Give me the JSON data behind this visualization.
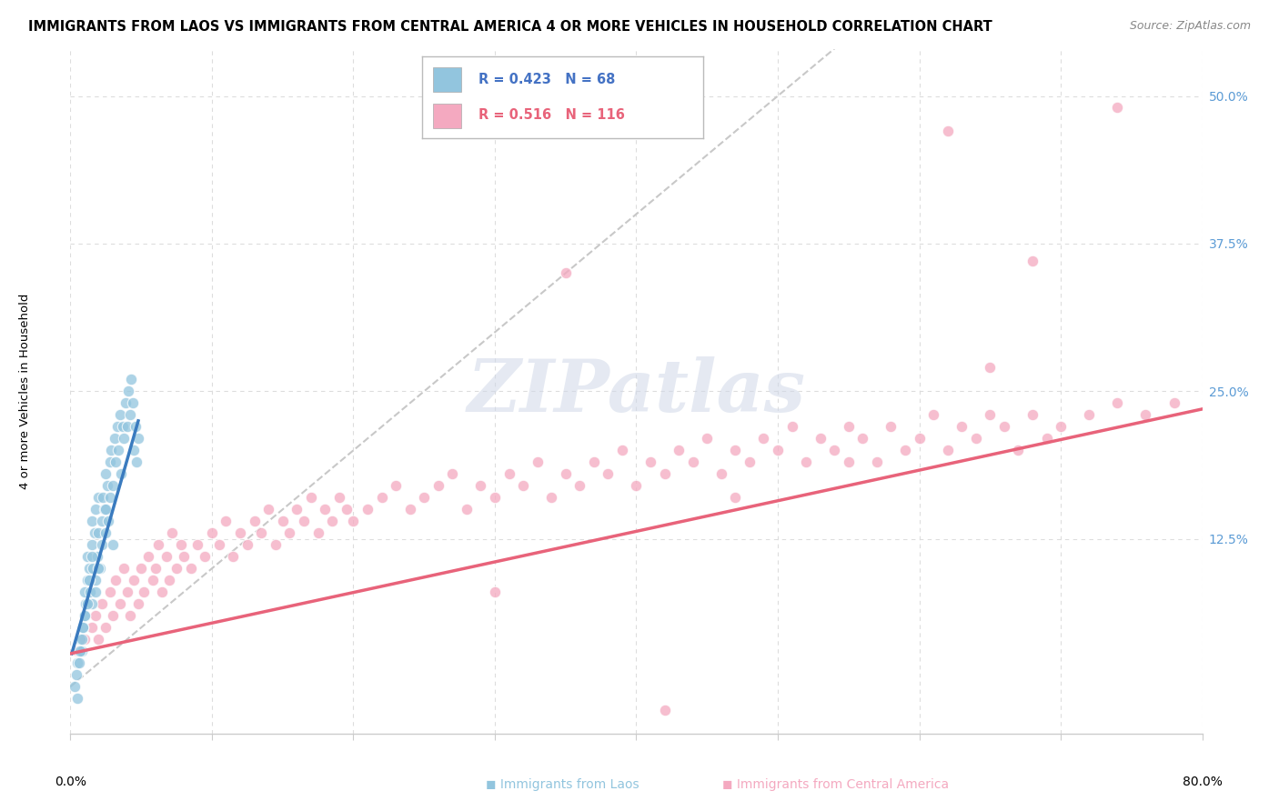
{
  "title": "IMMIGRANTS FROM LAOS VS IMMIGRANTS FROM CENTRAL AMERICA 4 OR MORE VEHICLES IN HOUSEHOLD CORRELATION CHART",
  "source": "Source: ZipAtlas.com",
  "ylabel": "4 or more Vehicles in Household",
  "xlim": [
    0.0,
    0.8
  ],
  "ylim": [
    -0.04,
    0.54
  ],
  "yticks": [
    0.125,
    0.25,
    0.375,
    0.5
  ],
  "ytick_labels": [
    "12.5%",
    "25.0%",
    "37.5%",
    "50.0%"
  ],
  "xtick_vals": [
    0.0,
    0.1,
    0.2,
    0.3,
    0.4,
    0.5,
    0.6,
    0.7,
    0.8
  ],
  "legend_blue_R": "R = 0.423",
  "legend_blue_N": "N = 68",
  "legend_pink_R": "R = 0.516",
  "legend_pink_N": "N = 116",
  "blue_color": "#92c5de",
  "pink_color": "#f4a9c0",
  "blue_line_color": "#3a7bbf",
  "pink_line_color": "#e8637a",
  "diagonal_color": "#c8c8c8",
  "watermark": "ZIPatlas",
  "title_fontsize": 10.5,
  "source_fontsize": 9,
  "label_fontsize": 9.5,
  "tick_fontsize": 10,
  "blue_scatter_x": [
    0.005,
    0.006,
    0.007,
    0.008,
    0.009,
    0.01,
    0.01,
    0.011,
    0.012,
    0.012,
    0.013,
    0.014,
    0.015,
    0.015,
    0.015,
    0.016,
    0.017,
    0.018,
    0.018,
    0.019,
    0.02,
    0.02,
    0.021,
    0.022,
    0.022,
    0.023,
    0.024,
    0.025,
    0.025,
    0.026,
    0.027,
    0.028,
    0.028,
    0.029,
    0.03,
    0.031,
    0.032,
    0.033,
    0.034,
    0.035,
    0.036,
    0.037,
    0.038,
    0.039,
    0.04,
    0.041,
    0.042,
    0.043,
    0.044,
    0.045,
    0.046,
    0.047,
    0.048,
    0.003,
    0.004,
    0.005,
    0.006,
    0.007,
    0.008,
    0.009,
    0.01,
    0.012,
    0.013,
    0.015,
    0.018,
    0.02,
    0.025,
    0.03
  ],
  "blue_scatter_y": [
    0.02,
    0.03,
    0.04,
    0.03,
    0.05,
    0.06,
    0.08,
    0.07,
    0.09,
    0.11,
    0.1,
    0.08,
    0.12,
    0.14,
    0.07,
    0.1,
    0.13,
    0.09,
    0.15,
    0.11,
    0.13,
    0.16,
    0.1,
    0.14,
    0.12,
    0.16,
    0.15,
    0.13,
    0.18,
    0.17,
    0.14,
    0.19,
    0.16,
    0.2,
    0.17,
    0.21,
    0.19,
    0.22,
    0.2,
    0.23,
    0.18,
    0.22,
    0.21,
    0.24,
    0.22,
    0.25,
    0.23,
    0.26,
    0.24,
    0.2,
    0.22,
    0.19,
    0.21,
    0.0,
    0.01,
    -0.01,
    0.02,
    0.03,
    0.04,
    0.05,
    0.06,
    0.07,
    0.09,
    0.11,
    0.08,
    0.1,
    0.15,
    0.12
  ],
  "pink_scatter_x": [
    0.005,
    0.01,
    0.015,
    0.018,
    0.02,
    0.022,
    0.025,
    0.028,
    0.03,
    0.032,
    0.035,
    0.038,
    0.04,
    0.042,
    0.045,
    0.048,
    0.05,
    0.052,
    0.055,
    0.058,
    0.06,
    0.062,
    0.065,
    0.068,
    0.07,
    0.072,
    0.075,
    0.078,
    0.08,
    0.085,
    0.09,
    0.095,
    0.1,
    0.105,
    0.11,
    0.115,
    0.12,
    0.125,
    0.13,
    0.135,
    0.14,
    0.145,
    0.15,
    0.155,
    0.16,
    0.165,
    0.17,
    0.175,
    0.18,
    0.185,
    0.19,
    0.195,
    0.2,
    0.21,
    0.22,
    0.23,
    0.24,
    0.25,
    0.26,
    0.27,
    0.28,
    0.29,
    0.3,
    0.31,
    0.32,
    0.33,
    0.34,
    0.35,
    0.36,
    0.37,
    0.38,
    0.39,
    0.4,
    0.41,
    0.42,
    0.43,
    0.44,
    0.45,
    0.46,
    0.47,
    0.48,
    0.49,
    0.5,
    0.51,
    0.52,
    0.53,
    0.54,
    0.55,
    0.56,
    0.57,
    0.58,
    0.59,
    0.6,
    0.61,
    0.62,
    0.63,
    0.64,
    0.65,
    0.66,
    0.67,
    0.68,
    0.69,
    0.7,
    0.72,
    0.74,
    0.76,
    0.78,
    0.35,
    0.62,
    0.74,
    0.65,
    0.42,
    0.3,
    0.55,
    0.47,
    0.68
  ],
  "pink_scatter_y": [
    0.03,
    0.04,
    0.05,
    0.06,
    0.04,
    0.07,
    0.05,
    0.08,
    0.06,
    0.09,
    0.07,
    0.1,
    0.08,
    0.06,
    0.09,
    0.07,
    0.1,
    0.08,
    0.11,
    0.09,
    0.1,
    0.12,
    0.08,
    0.11,
    0.09,
    0.13,
    0.1,
    0.12,
    0.11,
    0.1,
    0.12,
    0.11,
    0.13,
    0.12,
    0.14,
    0.11,
    0.13,
    0.12,
    0.14,
    0.13,
    0.15,
    0.12,
    0.14,
    0.13,
    0.15,
    0.14,
    0.16,
    0.13,
    0.15,
    0.14,
    0.16,
    0.15,
    0.14,
    0.15,
    0.16,
    0.17,
    0.15,
    0.16,
    0.17,
    0.18,
    0.15,
    0.17,
    0.16,
    0.18,
    0.17,
    0.19,
    0.16,
    0.18,
    0.17,
    0.19,
    0.18,
    0.2,
    0.17,
    0.19,
    0.18,
    0.2,
    0.19,
    0.21,
    0.18,
    0.2,
    0.19,
    0.21,
    0.2,
    0.22,
    0.19,
    0.21,
    0.2,
    0.22,
    0.21,
    0.19,
    0.22,
    0.2,
    0.21,
    0.23,
    0.2,
    0.22,
    0.21,
    0.23,
    0.22,
    0.2,
    0.23,
    0.21,
    0.22,
    0.23,
    0.24,
    0.23,
    0.24,
    0.35,
    0.47,
    0.49,
    0.27,
    -0.02,
    0.08,
    0.19,
    0.16,
    0.36
  ],
  "blue_trend_x": [
    0.001,
    0.048
  ],
  "blue_trend_y": [
    0.028,
    0.225
  ],
  "pink_trend_x": [
    0.0,
    0.8
  ],
  "pink_trend_y": [
    0.028,
    0.235
  ],
  "diag_trend_x": [
    0.0,
    0.54
  ],
  "diag_trend_y": [
    0.0,
    0.54
  ]
}
